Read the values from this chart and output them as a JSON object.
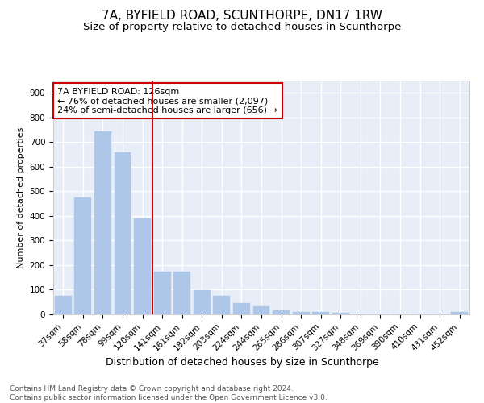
{
  "title1": "7A, BYFIELD ROAD, SCUNTHORPE, DN17 1RW",
  "title2": "Size of property relative to detached houses in Scunthorpe",
  "xlabel": "Distribution of detached houses by size in Scunthorpe",
  "ylabel": "Number of detached properties",
  "categories": [
    "37sqm",
    "58sqm",
    "78sqm",
    "99sqm",
    "120sqm",
    "141sqm",
    "161sqm",
    "182sqm",
    "203sqm",
    "224sqm",
    "244sqm",
    "265sqm",
    "286sqm",
    "307sqm",
    "327sqm",
    "348sqm",
    "369sqm",
    "390sqm",
    "410sqm",
    "431sqm",
    "452sqm"
  ],
  "values": [
    75,
    475,
    742,
    657,
    390,
    173,
    173,
    98,
    75,
    45,
    33,
    16,
    11,
    10,
    8,
    0,
    0,
    0,
    0,
    0,
    10
  ],
  "bar_color": "#aec6e8",
  "bar_edge_color": "#aec6e8",
  "vline_x_index": 4.5,
  "vline_color": "#cc0000",
  "annotation_text": "7A BYFIELD ROAD: 126sqm\n← 76% of detached houses are smaller (2,097)\n24% of semi-detached houses are larger (656) →",
  "annotation_box_color": "#ffffff",
  "annotation_box_edgecolor": "#cc0000",
  "ylim": [
    0,
    950
  ],
  "yticks": [
    0,
    100,
    200,
    300,
    400,
    500,
    600,
    700,
    800,
    900
  ],
  "footer_text": "Contains HM Land Registry data © Crown copyright and database right 2024.\nContains public sector information licensed under the Open Government Licence v3.0.",
  "background_color": "#e8eef8",
  "grid_color": "#ffffff",
  "title1_fontsize": 11,
  "title2_fontsize": 9.5,
  "ylabel_fontsize": 8,
  "xlabel_fontsize": 9,
  "tick_fontsize": 7.5,
  "annotation_fontsize": 8,
  "footer_fontsize": 6.5
}
